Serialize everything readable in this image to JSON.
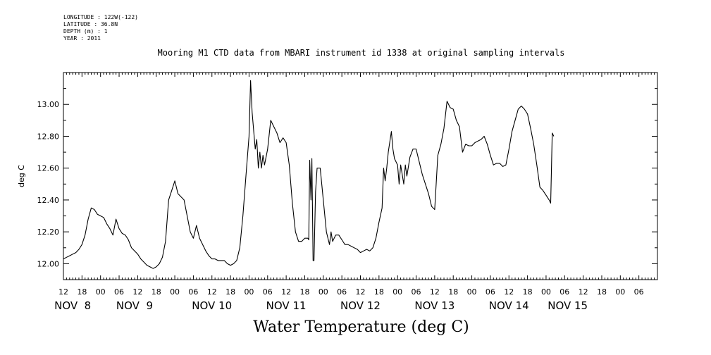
{
  "meta": {
    "longitude": "LONGITUDE : 122W(-122)",
    "latitude": "LATITUDE : 36.8N",
    "depth": "DEPTH (m) : 1",
    "year": "YEAR : 2011"
  },
  "chart_data": {
    "type": "line",
    "title": "Mooring M1 CTD data from MBARI instrument id 1338 at original sampling intervals",
    "xlabel": "Water Temperature (deg C)",
    "ylabel": "deg C",
    "ylim": [
      11.9,
      13.2
    ],
    "xlim": [
      0,
      192
    ],
    "x_units": "hours since NOV 8 12:00",
    "y_ticks": [
      "12.00",
      "12.20",
      "12.40",
      "12.60",
      "12.80",
      "13.00"
    ],
    "y_tick_values": [
      12.0,
      12.2,
      12.4,
      12.6,
      12.8,
      13.0
    ],
    "x_hour_ticks": [
      {
        "x": 0,
        "label": "12"
      },
      {
        "x": 6,
        "label": "18"
      },
      {
        "x": 12,
        "label": "00"
      },
      {
        "x": 18,
        "label": "06"
      },
      {
        "x": 24,
        "label": "12"
      },
      {
        "x": 30,
        "label": "18"
      },
      {
        "x": 36,
        "label": "00"
      },
      {
        "x": 42,
        "label": "06"
      },
      {
        "x": 48,
        "label": "12"
      },
      {
        "x": 54,
        "label": "18"
      },
      {
        "x": 60,
        "label": "00"
      },
      {
        "x": 66,
        "label": "06"
      },
      {
        "x": 72,
        "label": "12"
      },
      {
        "x": 78,
        "label": "18"
      },
      {
        "x": 84,
        "label": "00"
      },
      {
        "x": 90,
        "label": "06"
      },
      {
        "x": 96,
        "label": "12"
      },
      {
        "x": 102,
        "label": "18"
      },
      {
        "x": 108,
        "label": "00"
      },
      {
        "x": 114,
        "label": "06"
      },
      {
        "x": 120,
        "label": "12"
      },
      {
        "x": 126,
        "label": "18"
      },
      {
        "x": 132,
        "label": "00"
      },
      {
        "x": 138,
        "label": "06"
      },
      {
        "x": 144,
        "label": "12"
      },
      {
        "x": 150,
        "label": "18"
      },
      {
        "x": 156,
        "label": "00"
      },
      {
        "x": 162,
        "label": "06"
      },
      {
        "x": 168,
        "label": "12"
      },
      {
        "x": 174,
        "label": "18"
      },
      {
        "x": 180,
        "label": "00"
      },
      {
        "x": 186,
        "label": "06"
      }
    ],
    "x_day_labels": [
      {
        "x": 3,
        "label": "NOV  8"
      },
      {
        "x": 23,
        "label": "NOV  9"
      },
      {
        "x": 48,
        "label": "NOV 10"
      },
      {
        "x": 72,
        "label": "NOV 11"
      },
      {
        "x": 96,
        "label": "NOV 12"
      },
      {
        "x": 120,
        "label": "NOV 13"
      },
      {
        "x": 144,
        "label": "NOV 14"
      },
      {
        "x": 163,
        "label": "NOV 15"
      }
    ],
    "series": [
      {
        "values": [
          [
            0,
            12.03
          ],
          [
            1,
            12.04
          ],
          [
            2,
            12.05
          ],
          [
            3,
            12.06
          ],
          [
            4,
            12.07
          ],
          [
            5,
            12.09
          ],
          [
            6,
            12.12
          ],
          [
            7,
            12.18
          ],
          [
            8,
            12.28
          ],
          [
            9,
            12.35
          ],
          [
            10,
            12.34
          ],
          [
            11,
            12.31
          ],
          [
            12,
            12.3
          ],
          [
            13,
            12.29
          ],
          [
            14,
            12.25
          ],
          [
            15,
            12.22
          ],
          [
            16,
            12.18
          ],
          [
            17,
            12.28
          ],
          [
            18,
            12.22
          ],
          [
            19,
            12.19
          ],
          [
            20,
            12.18
          ],
          [
            21,
            12.15
          ],
          [
            22,
            12.1
          ],
          [
            23,
            12.08
          ],
          [
            24,
            12.06
          ],
          [
            25,
            12.03
          ],
          [
            26,
            12.01
          ],
          [
            27,
            11.99
          ],
          [
            28,
            11.98
          ],
          [
            29,
            11.97
          ],
          [
            30,
            11.98
          ],
          [
            31,
            12.0
          ],
          [
            32,
            12.04
          ],
          [
            33,
            12.14
          ],
          [
            34,
            12.4
          ],
          [
            35,
            12.46
          ],
          [
            36,
            12.52
          ],
          [
            37,
            12.44
          ],
          [
            38,
            12.42
          ],
          [
            39,
            12.4
          ],
          [
            40,
            12.3
          ],
          [
            41,
            12.2
          ],
          [
            42,
            12.16
          ],
          [
            43,
            12.24
          ],
          [
            44,
            12.16
          ],
          [
            45,
            12.12
          ],
          [
            46,
            12.08
          ],
          [
            47,
            12.05
          ],
          [
            48,
            12.03
          ],
          [
            49,
            12.03
          ],
          [
            50,
            12.02
          ],
          [
            51,
            12.02
          ],
          [
            52,
            12.02
          ],
          [
            53,
            12.0
          ],
          [
            54,
            11.99
          ],
          [
            55,
            12.0
          ],
          [
            56,
            12.02
          ],
          [
            57,
            12.1
          ],
          [
            58,
            12.3
          ],
          [
            59,
            12.55
          ],
          [
            60,
            12.8
          ],
          [
            60.5,
            13.15
          ],
          [
            61,
            12.95
          ],
          [
            62,
            12.72
          ],
          [
            62.5,
            12.78
          ],
          [
            63,
            12.6
          ],
          [
            63.5,
            12.7
          ],
          [
            64,
            12.6
          ],
          [
            64.5,
            12.68
          ],
          [
            65,
            12.62
          ],
          [
            66,
            12.72
          ],
          [
            67,
            12.9
          ],
          [
            68,
            12.86
          ],
          [
            69,
            12.82
          ],
          [
            70,
            12.76
          ],
          [
            71,
            12.79
          ],
          [
            72,
            12.76
          ],
          [
            73,
            12.62
          ],
          [
            74,
            12.38
          ],
          [
            75,
            12.2
          ],
          [
            76,
            12.14
          ],
          [
            77,
            12.14
          ],
          [
            78,
            12.16
          ],
          [
            79,
            12.16
          ],
          [
            79.3,
            12.15
          ],
          [
            79.6,
            12.65
          ],
          [
            80,
            12.4
          ],
          [
            80.3,
            12.66
          ],
          [
            80.7,
            12.02
          ],
          [
            81,
            12.02
          ],
          [
            81.5,
            12.45
          ],
          [
            82,
            12.6
          ],
          [
            83,
            12.6
          ],
          [
            84,
            12.4
          ],
          [
            85,
            12.2
          ],
          [
            86,
            12.12
          ],
          [
            86.5,
            12.2
          ],
          [
            87,
            12.14
          ],
          [
            88,
            12.18
          ],
          [
            89,
            12.18
          ],
          [
            90,
            12.15
          ],
          [
            91,
            12.12
          ],
          [
            92,
            12.12
          ],
          [
            93,
            12.11
          ],
          [
            94,
            12.1
          ],
          [
            95,
            12.09
          ],
          [
            96,
            12.07
          ],
          [
            97,
            12.08
          ],
          [
            98,
            12.09
          ],
          [
            99,
            12.08
          ],
          [
            100,
            12.1
          ],
          [
            101,
            12.16
          ],
          [
            102,
            12.26
          ],
          [
            103,
            12.35
          ],
          [
            103.5,
            12.6
          ],
          [
            104,
            12.52
          ],
          [
            104.5,
            12.6
          ],
          [
            105,
            12.7
          ],
          [
            106,
            12.83
          ],
          [
            106.5,
            12.72
          ],
          [
            107,
            12.66
          ],
          [
            108,
            12.62
          ],
          [
            108.5,
            12.5
          ],
          [
            109,
            12.62
          ],
          [
            110,
            12.5
          ],
          [
            110.5,
            12.62
          ],
          [
            111,
            12.55
          ],
          [
            112,
            12.67
          ],
          [
            113,
            12.72
          ],
          [
            114,
            12.72
          ],
          [
            115,
            12.64
          ],
          [
            116,
            12.56
          ],
          [
            117,
            12.5
          ],
          [
            118,
            12.44
          ],
          [
            119,
            12.36
          ],
          [
            120,
            12.34
          ],
          [
            121,
            12.68
          ],
          [
            122,
            12.75
          ],
          [
            123,
            12.85
          ],
          [
            124,
            13.02
          ],
          [
            125,
            12.98
          ],
          [
            126,
            12.97
          ],
          [
            127,
            12.9
          ],
          [
            128,
            12.86
          ],
          [
            129,
            12.7
          ],
          [
            130,
            12.75
          ],
          [
            131,
            12.74
          ],
          [
            132,
            12.74
          ],
          [
            133,
            12.76
          ],
          [
            134,
            12.77
          ],
          [
            135,
            12.78
          ],
          [
            136,
            12.8
          ],
          [
            137,
            12.75
          ],
          [
            138,
            12.68
          ],
          [
            139,
            12.62
          ],
          [
            140,
            12.63
          ],
          [
            141,
            12.63
          ],
          [
            142,
            12.61
          ],
          [
            143,
            12.62
          ],
          [
            144,
            12.72
          ],
          [
            145,
            12.83
          ],
          [
            146,
            12.9
          ],
          [
            147,
            12.97
          ],
          [
            148,
            12.99
          ],
          [
            149,
            12.97
          ],
          [
            150,
            12.94
          ],
          [
            151,
            12.85
          ],
          [
            152,
            12.75
          ],
          [
            153,
            12.62
          ],
          [
            154,
            12.48
          ],
          [
            155,
            12.46
          ],
          [
            156,
            12.43
          ],
          [
            157,
            12.4
          ],
          [
            157.5,
            12.38
          ],
          [
            158,
            12.82
          ],
          [
            158.5,
            12.8
          ]
        ]
      }
    ]
  }
}
